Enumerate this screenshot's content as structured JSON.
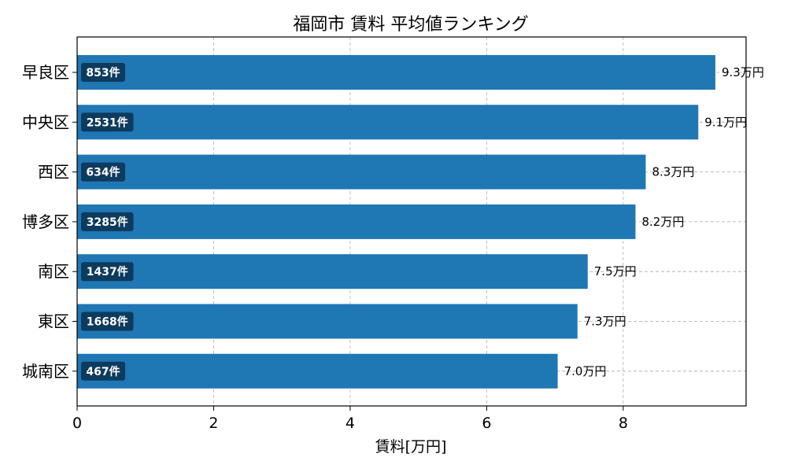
{
  "chart_data": {
    "type": "bar",
    "orientation": "horizontal",
    "title": "福岡市 賃料 平均値ランキング",
    "xlabel": "賃料[万円]",
    "ylabel": "",
    "xlim": [
      0,
      9.8
    ],
    "xticks": [
      "0",
      "2",
      "4",
      "6",
      "8"
    ],
    "grid": true,
    "bar_color": "#1f77b4",
    "count_badge_color": "#0d3b5e",
    "categories": [
      "早良区",
      "中央区",
      "西区",
      "博多区",
      "南区",
      "東区",
      "城南区"
    ],
    "values": [
      9.35,
      9.1,
      8.33,
      8.18,
      7.48,
      7.33,
      7.04
    ],
    "value_labels": [
      "9.3万円",
      "9.1万円",
      "8.3万円",
      "8.2万円",
      "7.5万円",
      "7.3万円",
      "7.0万円"
    ],
    "counts": [
      "853件",
      "2531件",
      "634件",
      "3285件",
      "1437件",
      "1668件",
      "467件"
    ]
  }
}
